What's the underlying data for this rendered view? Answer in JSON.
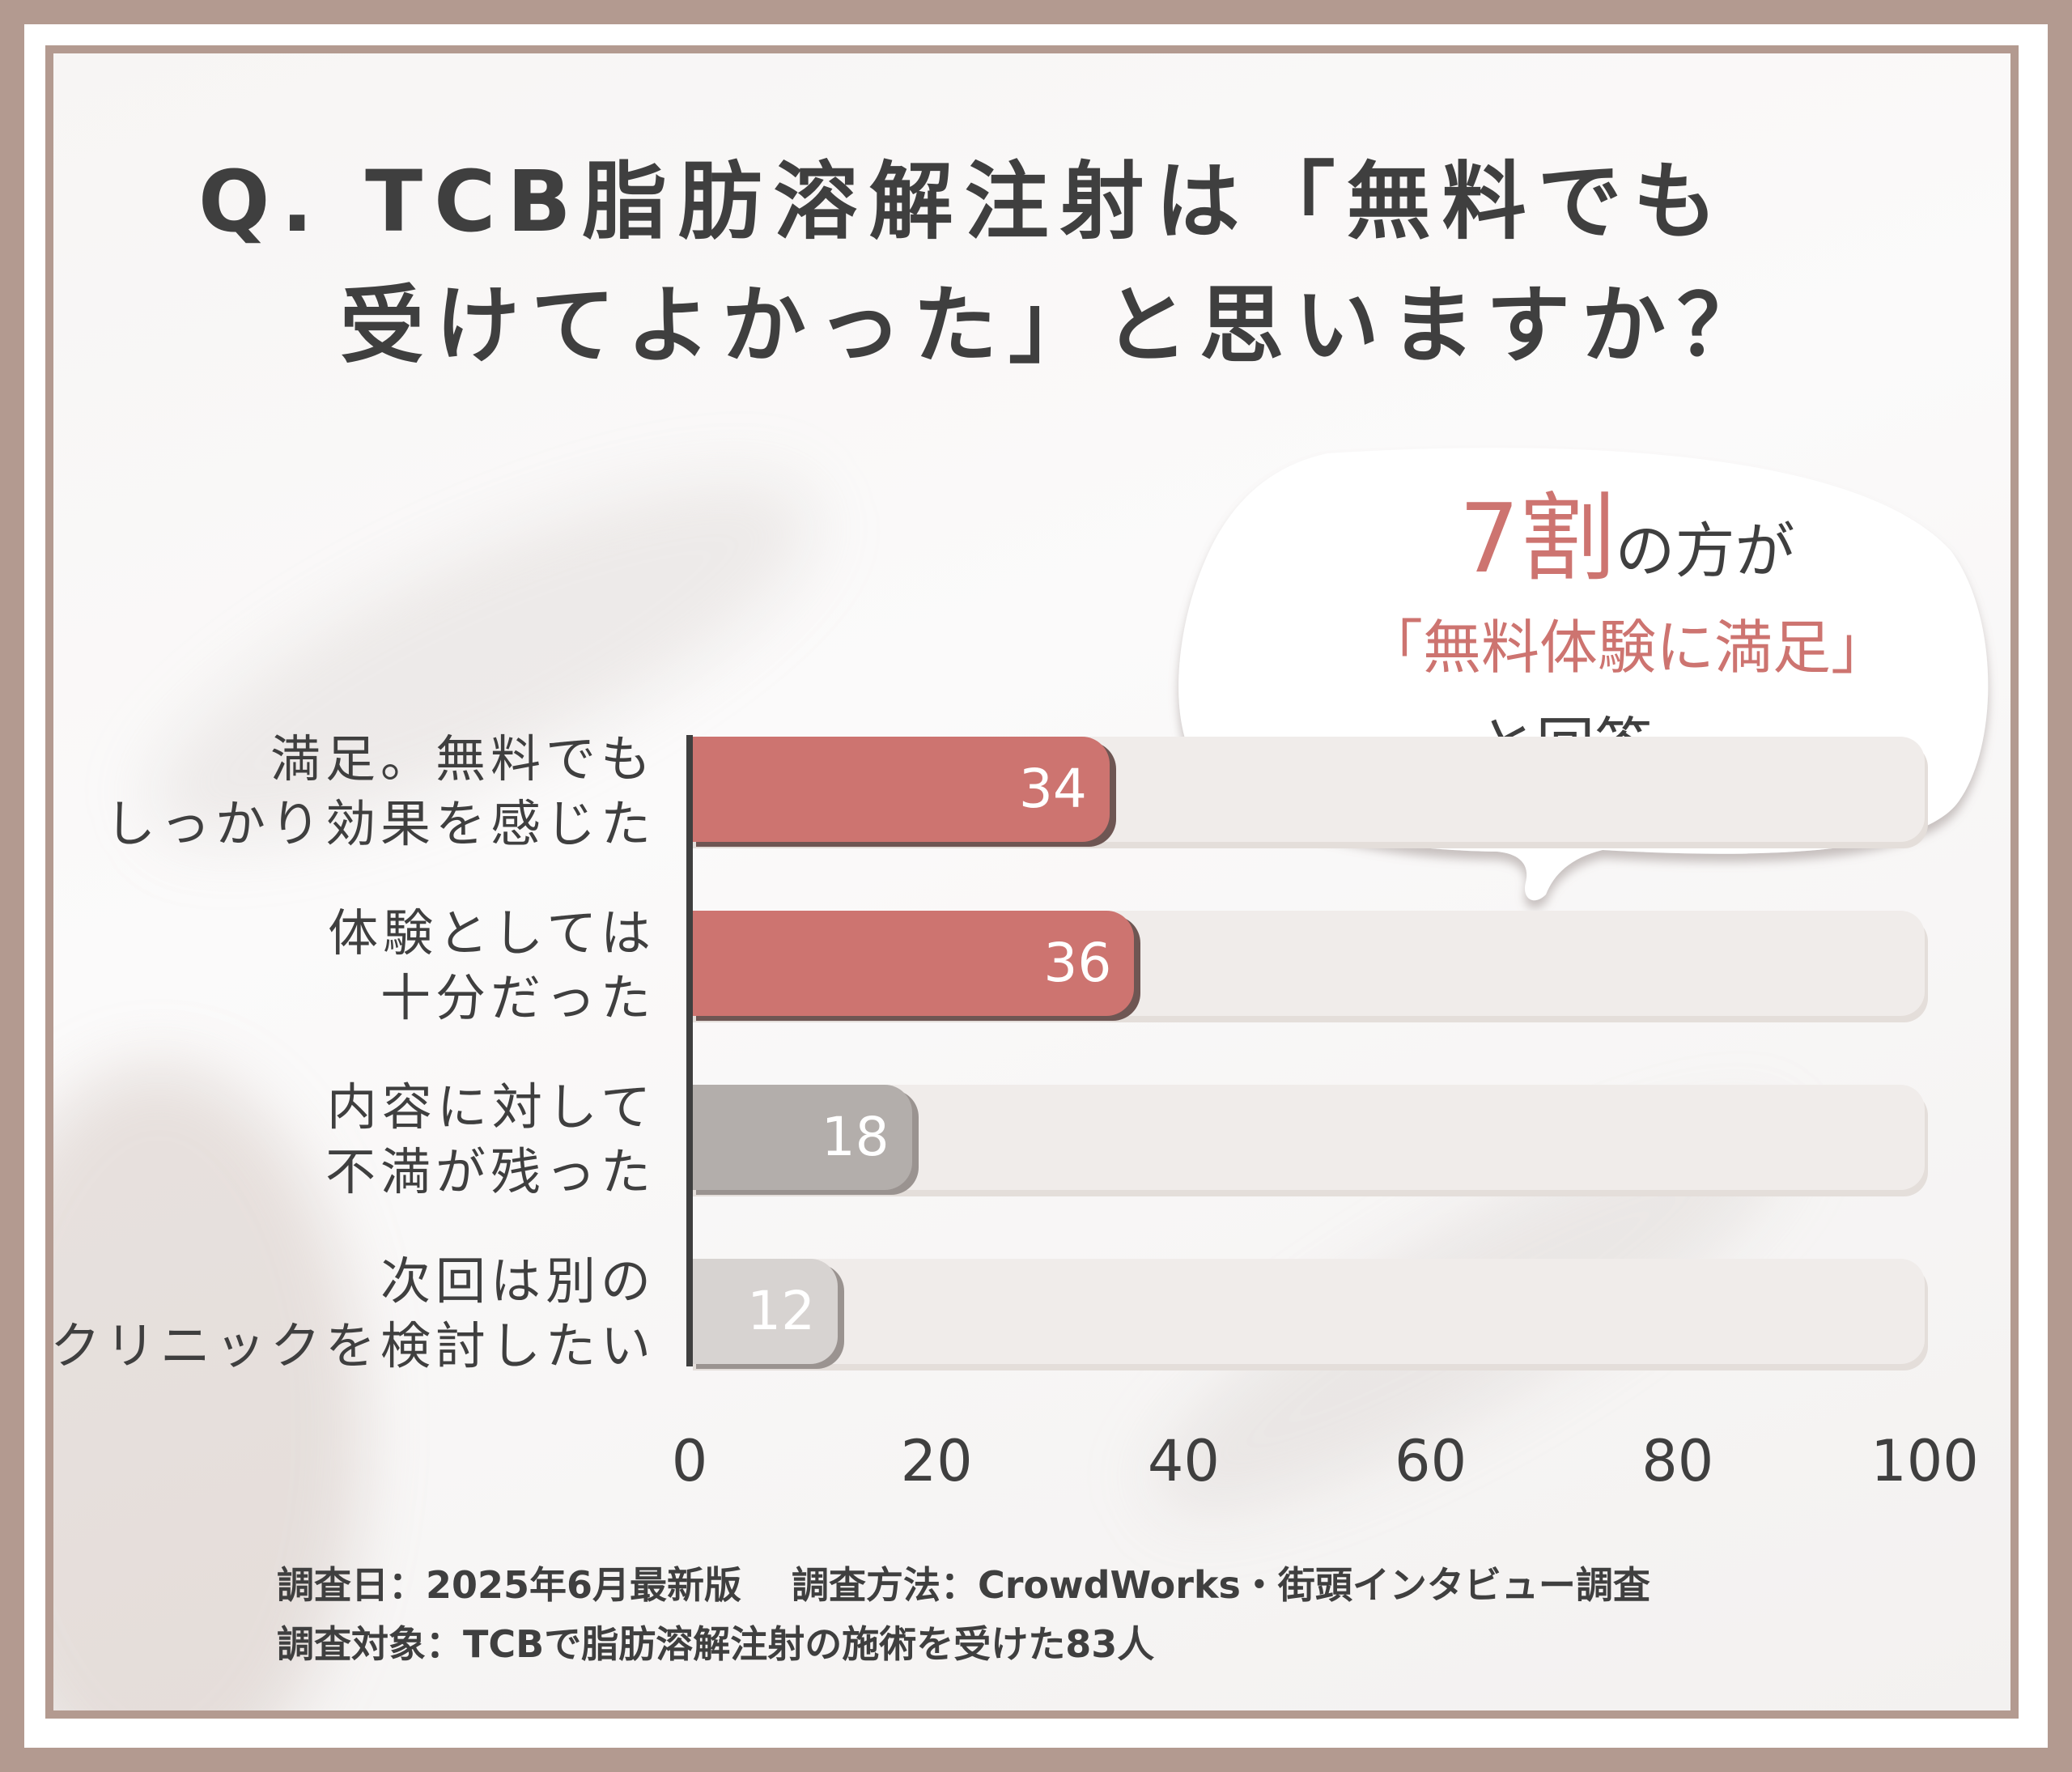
{
  "title": {
    "line1": "Q. TCB脂肪溶解注射は「無料でも",
    "line2": "受けてよかった」と思いますか？"
  },
  "callout": {
    "highlight": "7割",
    "line1_rest": "の方が",
    "line2": "「無料体験に満足」",
    "line3": "と回答。",
    "highlight_color": "#cd7470"
  },
  "chart_data": {
    "type": "bar",
    "orientation": "horizontal",
    "categories": [
      [
        "満足。無料でも",
        "しっかり効果を感じた"
      ],
      [
        "体験としては",
        "十分だった"
      ],
      [
        "内容に対して",
        "不満が残った"
      ],
      [
        "次回は別の",
        "クリニックを検討したい"
      ]
    ],
    "values": [
      34,
      36,
      18,
      12
    ],
    "value_labels": [
      "34",
      "36",
      "18",
      "12"
    ],
    "bar_colors": [
      "#cd7470",
      "#cd7470",
      "#b3aeab",
      "#d7d3d1"
    ],
    "xlim": [
      0,
      100
    ],
    "xticks": [
      "0",
      "20",
      "40",
      "60",
      "80",
      "100"
    ],
    "grid": false
  },
  "footnote": {
    "line1": "調査日：2025年6月最新版　 調査方法：CrowdWorks・街頭インタビュー調査",
    "line2": "調査対象：TCBで脂肪溶解注射の施術を受けた83人"
  }
}
